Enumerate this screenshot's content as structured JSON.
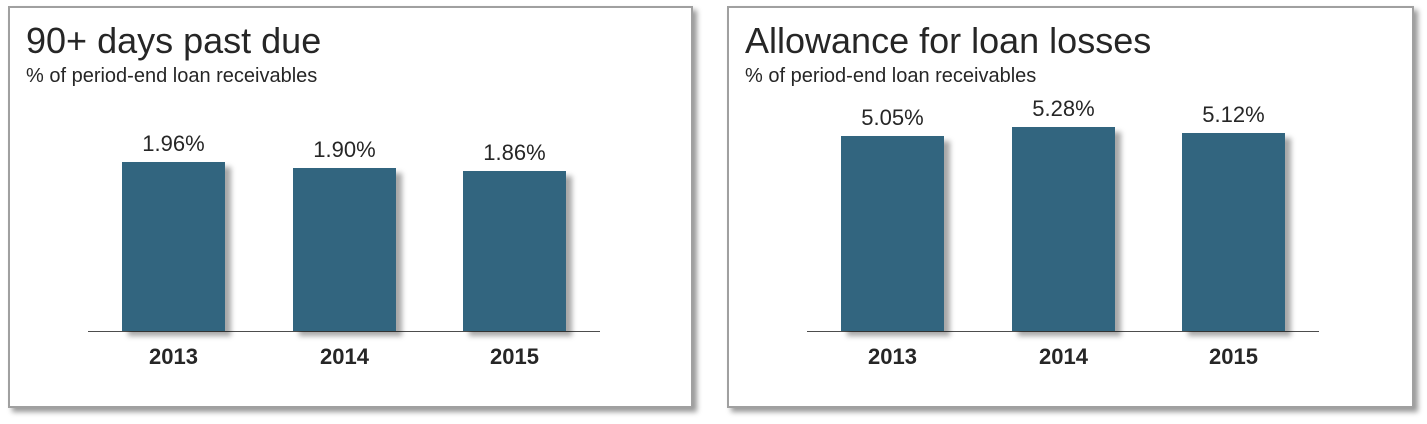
{
  "colors": {
    "bar": "#32657F",
    "text": "#262626",
    "axis_line": "#4d4d4d",
    "panel_border": "#a0a0a0"
  },
  "chart_data": [
    {
      "type": "bar",
      "title": "90+ days past due",
      "subtitle": "% of period-end loan receivables",
      "categories": [
        "2013",
        "2014",
        "2015"
      ],
      "values": [
        1.96,
        1.9,
        1.86
      ],
      "value_labels": [
        "1.96%",
        "1.90%",
        "1.86%"
      ],
      "ylabel": "",
      "xlabel": "",
      "ylim": [
        0,
        2.2
      ],
      "grid": false,
      "legend": "none",
      "data_labels": "above-bars",
      "bar_color": "#32657F"
    },
    {
      "type": "bar",
      "title": "Allowance for loan losses",
      "subtitle": "% of period-end loan receivables",
      "categories": [
        "2013",
        "2014",
        "2015"
      ],
      "values": [
        5.05,
        5.28,
        5.12
      ],
      "value_labels": [
        "5.05%",
        "5.28%",
        "5.12%"
      ],
      "ylabel": "",
      "xlabel": "",
      "ylim": [
        0,
        5.8
      ],
      "grid": false,
      "legend": "none",
      "data_labels": "above-bars",
      "bar_color": "#32657F"
    }
  ]
}
